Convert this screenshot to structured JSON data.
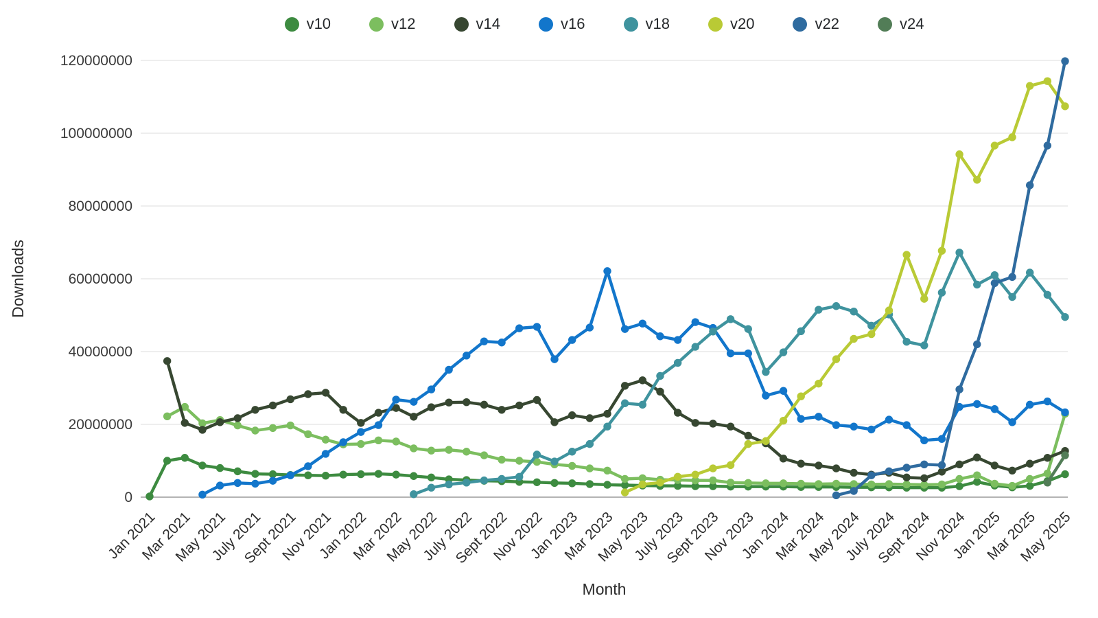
{
  "chart_data": {
    "type": "line",
    "title": "",
    "xlabel": "Month",
    "ylabel": "Downloads",
    "unit_scale": 1000000,
    "ylim": [
      0,
      120000000
    ],
    "ytick_step": 20000000,
    "ytick_labels": [
      "0",
      "20000000",
      "40000000",
      "60000000",
      "80000000",
      "100000000",
      "120000000"
    ],
    "grid": "horizontal",
    "legend_position": "top",
    "background_color": "#ffffff",
    "grid_color": "#e4e4e4",
    "axis_color": "#9a9a9a",
    "text_color": "#3a3a3a",
    "x_tick_every": 2,
    "months": [
      "Jan 2021",
      "Feb 2021",
      "Mar 2021",
      "Apr 2021",
      "May 2021",
      "Jun 2021",
      "July 2021",
      "Aug 2021",
      "Sept 2021",
      "Oct 2021",
      "Nov 2021",
      "Dec 2021",
      "Jan 2022",
      "Feb 2022",
      "Mar 2022",
      "Apr 2022",
      "May 2022",
      "Jun 2022",
      "July 2022",
      "Aug 2022",
      "Sept 2022",
      "Oct 2022",
      "Nov 2022",
      "Dec 2022",
      "Jan 2023",
      "Feb 2023",
      "Mar 2023",
      "Apr 2023",
      "May 2023",
      "Jun 2023",
      "July 2023",
      "Aug 2023",
      "Sept 2023",
      "Oct 2023",
      "Nov 2023",
      "Dec 2023",
      "Jan 2024",
      "Feb 2024",
      "Mar 2024",
      "Apr 2024",
      "May 2024",
      "Jun 2024",
      "July 2024",
      "Aug 2024",
      "Sept 2024",
      "Oct 2024",
      "Nov 2024",
      "Dec 2024",
      "Jan 2025",
      "Feb 2025",
      "Mar 2025",
      "Apr 2025",
      "May 2025"
    ],
    "series": [
      {
        "name": "v10",
        "color": "#3d8b40",
        "values_millions": [
          0.2,
          10.0,
          10.8,
          8.7,
          8.0,
          7.1,
          6.4,
          6.3,
          6.1,
          6.0,
          5.9,
          6.2,
          6.3,
          6.4,
          6.2,
          5.8,
          5.4,
          4.9,
          4.7,
          4.5,
          4.4,
          4.2,
          4.1,
          3.9,
          3.8,
          3.6,
          3.4,
          3.3,
          3.2,
          3.1,
          3.1,
          3.0,
          3.0,
          2.9,
          2.9,
          2.9,
          2.9,
          2.8,
          2.8,
          2.8,
          2.7,
          2.7,
          2.7,
          2.6,
          2.6,
          2.6,
          3.0,
          4.2,
          3.2,
          2.7,
          3.1,
          4.4,
          6.3
        ]
      },
      {
        "name": "v12",
        "color": "#7cbe5f",
        "values_millions": [
          null,
          22.2,
          24.8,
          20.3,
          21.2,
          19.7,
          18.3,
          19.0,
          19.7,
          17.3,
          15.8,
          14.5,
          14.6,
          15.6,
          15.3,
          13.4,
          12.8,
          13.0,
          12.5,
          11.5,
          10.3,
          10.0,
          9.7,
          9.0,
          8.6,
          7.9,
          7.3,
          5.0,
          5.2,
          4.8,
          4.7,
          4.6,
          4.6,
          4.0,
          3.9,
          3.8,
          3.8,
          3.7,
          3.6,
          3.7,
          3.6,
          3.5,
          3.6,
          3.5,
          3.4,
          3.5,
          5.0,
          6.0,
          3.7,
          3.1,
          5.0,
          6.5,
          22.9
        ]
      },
      {
        "name": "v14",
        "color": "#374731",
        "values_millions": [
          null,
          37.4,
          20.4,
          18.5,
          20.6,
          21.7,
          24.0,
          25.2,
          26.9,
          28.3,
          28.7,
          24.0,
          20.4,
          23.2,
          24.5,
          22.1,
          24.7,
          26.0,
          26.1,
          25.4,
          24.0,
          25.2,
          26.7,
          20.6,
          22.5,
          21.7,
          22.9,
          30.6,
          32.1,
          29.0,
          23.2,
          20.4,
          20.2,
          19.4,
          16.9,
          14.8,
          10.6,
          9.2,
          8.7,
          7.9,
          6.7,
          6.2,
          6.7,
          5.4,
          5.2,
          7.0,
          9.0,
          10.9,
          8.7,
          7.3,
          9.2,
          10.8,
          12.7
        ]
      },
      {
        "name": "v16",
        "color": "#1276cb",
        "values_millions": [
          null,
          null,
          null,
          0.7,
          3.2,
          3.9,
          3.7,
          4.5,
          6.0,
          8.5,
          11.9,
          15.1,
          17.9,
          19.8,
          26.8,
          26.2,
          29.6,
          35.0,
          38.9,
          42.8,
          42.5,
          46.4,
          46.8,
          37.9,
          43.2,
          46.6,
          62.1,
          46.2,
          47.7,
          44.2,
          43.2,
          48.1,
          46.5,
          39.5,
          39.5,
          27.9,
          29.2,
          21.5,
          22.1,
          19.8,
          19.4,
          18.6,
          21.3,
          19.8,
          15.6,
          16.0,
          24.8,
          25.6,
          24.2,
          20.6,
          25.4,
          26.3,
          23.3
        ]
      },
      {
        "name": "v18",
        "color": "#3f939e",
        "values_millions": [
          null,
          null,
          null,
          null,
          null,
          null,
          null,
          null,
          null,
          null,
          null,
          null,
          null,
          null,
          null,
          0.8,
          2.6,
          3.5,
          4.0,
          4.6,
          5.0,
          5.6,
          11.7,
          9.8,
          12.5,
          14.6,
          19.4,
          25.8,
          25.4,
          33.3,
          36.9,
          41.3,
          45.5,
          48.9,
          46.2,
          34.4,
          39.8,
          45.6,
          51.5,
          52.5,
          51.0,
          47.1,
          50.2,
          42.7,
          41.7,
          56.2,
          67.2,
          58.4,
          61.0,
          55.0,
          61.7,
          55.6,
          49.5
        ]
      },
      {
        "name": "v20",
        "color": "#b9ca35",
        "values_millions": [
          null,
          null,
          null,
          null,
          null,
          null,
          null,
          null,
          null,
          null,
          null,
          null,
          null,
          null,
          null,
          null,
          null,
          null,
          null,
          null,
          null,
          null,
          null,
          null,
          null,
          null,
          null,
          1.3,
          3.5,
          4.0,
          5.6,
          6.2,
          7.9,
          8.8,
          14.6,
          15.4,
          21.0,
          27.7,
          31.2,
          37.9,
          43.5,
          44.8,
          51.3,
          66.6,
          54.5,
          67.7,
          94.2,
          87.2,
          96.6,
          98.9,
          113.0,
          114.3,
          107.4
        ]
      },
      {
        "name": "v22",
        "color": "#2f6b9f",
        "values_millions": [
          null,
          null,
          null,
          null,
          null,
          null,
          null,
          null,
          null,
          null,
          null,
          null,
          null,
          null,
          null,
          null,
          null,
          null,
          null,
          null,
          null,
          null,
          null,
          null,
          null,
          null,
          null,
          null,
          null,
          null,
          null,
          null,
          null,
          null,
          null,
          null,
          null,
          null,
          null,
          0.5,
          1.7,
          6.0,
          7.1,
          8.1,
          9.0,
          8.8,
          29.6,
          42.0,
          58.8,
          60.5,
          85.7,
          96.6,
          119.8
        ]
      },
      {
        "name": "v24",
        "color": "#527d57",
        "values_millions": [
          null,
          null,
          null,
          null,
          null,
          null,
          null,
          null,
          null,
          null,
          null,
          null,
          null,
          null,
          null,
          null,
          null,
          null,
          null,
          null,
          null,
          null,
          null,
          null,
          null,
          null,
          null,
          null,
          null,
          null,
          null,
          null,
          null,
          null,
          null,
          null,
          null,
          null,
          null,
          null,
          null,
          null,
          null,
          null,
          null,
          null,
          null,
          null,
          null,
          null,
          null,
          4.0,
          11.5
        ]
      }
    ]
  }
}
